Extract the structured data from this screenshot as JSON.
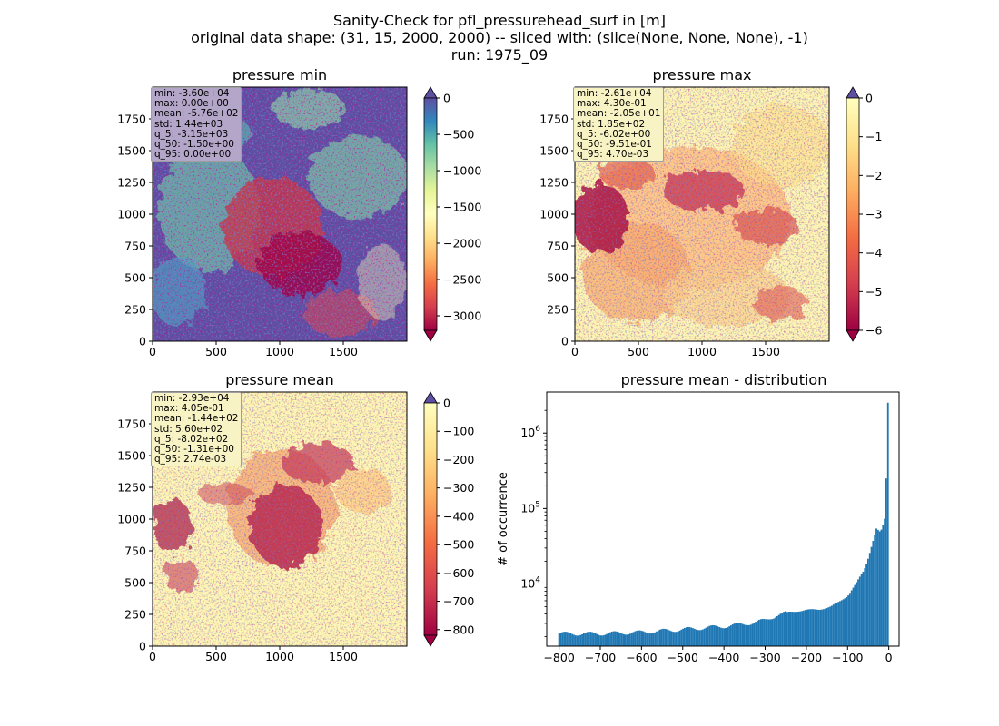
{
  "suptitle": {
    "line1": "Sanity-Check for pfl_pressurehead_surf in [m]",
    "line2": "original data shape: (31, 15, 2000, 2000) -- sliced with: (slice(None, None, None), -1)",
    "line3": "run: 1975_09"
  },
  "panels": [
    {
      "title": "pressure min",
      "colormap": "Spectral",
      "xticks": [
        0,
        500,
        1000,
        1500
      ],
      "yticks": [
        0,
        250,
        500,
        750,
        1000,
        1250,
        1500,
        1750
      ],
      "colorbar": {
        "vmin": -3200,
        "vmax": 0,
        "ticks": [
          0,
          -500,
          -1000,
          -1500,
          -2000,
          -2500,
          -3000
        ],
        "extend": "both"
      },
      "stats": [
        "min: -3.60e+04",
        "max: 0.00e+00",
        "mean: -5.76e+02",
        "std: 1.44e+03",
        "q_5: -3.15e+03",
        "q_50: -1.50e+00",
        "q_95: 0.00e+00"
      ],
      "stats_bg": "#b3a6c8"
    },
    {
      "title": "pressure max",
      "colormap": "Spectral",
      "xticks": [
        0,
        500,
        1000,
        1500
      ],
      "yticks": [
        0,
        250,
        500,
        750,
        1000,
        1250,
        1500,
        1750
      ],
      "colorbar": {
        "vmin": -6,
        "vmax": 0,
        "ticks": [
          0,
          -1,
          -2,
          -3,
          -4,
          -5,
          -6
        ],
        "extend": "both"
      },
      "stats": [
        "min: -2.61e+04",
        "max: 4.30e-01",
        "mean: -2.05e+01",
        "std: 1.85e+02",
        "q_5: -6.02e+00",
        "q_50: -9.51e-01",
        "q_95: 4.70e-03"
      ],
      "stats_bg": "#f8f3c4"
    },
    {
      "title": "pressure mean",
      "colormap": "Spectral",
      "xticks": [
        0,
        500,
        1000,
        1500
      ],
      "yticks": [
        0,
        250,
        500,
        750,
        1000,
        1250,
        1500,
        1750
      ],
      "colorbar": {
        "vmin": -820,
        "vmax": 0,
        "ticks": [
          0,
          -100,
          -200,
          -300,
          -400,
          -500,
          -600,
          -700,
          -800
        ],
        "extend": "both"
      },
      "stats": [
        "min: -2.93e+04",
        "max: 4.05e-01",
        "mean: -1.44e+02",
        "std: 5.60e+02",
        "q_5: -8.02e+02",
        "q_50: -1.31e+00",
        "q_95: 2.74e-03"
      ],
      "stats_bg": "#f8f3c4"
    }
  ],
  "histogram": {
    "title": "pressure mean - distribution",
    "ylabel": "# of occurrence",
    "color": "#1f77b4",
    "xlim": [
      -830,
      25
    ],
    "xticks": [
      -800,
      -700,
      -600,
      -500,
      -400,
      -300,
      -200,
      -100,
      0
    ],
    "yscale": "log",
    "ylim": [
      1500,
      3500000
    ],
    "ytick_labels": [
      {
        "value": 10000,
        "base": "10",
        "exp": "4"
      },
      {
        "value": 100000,
        "base": "10",
        "exp": "5"
      },
      {
        "value": 1000000,
        "base": "10",
        "exp": "6"
      }
    ]
  },
  "chart_data": [
    {
      "type": "heatmap",
      "title": "pressure min",
      "xlim": [
        0,
        2000
      ],
      "ylim": [
        0,
        2000
      ],
      "colorbar_range": [
        -3200,
        0
      ],
      "stats": {
        "min": -36000,
        "max": 0,
        "mean": -576,
        "std": 1440,
        "q_5": -3150,
        "q_50": -1.5,
        "q_95": 0
      }
    },
    {
      "type": "heatmap",
      "title": "pressure max",
      "xlim": [
        0,
        2000
      ],
      "ylim": [
        0,
        2000
      ],
      "colorbar_range": [
        -6,
        0
      ],
      "stats": {
        "min": -26100,
        "max": 0.43,
        "mean": -20.5,
        "std": 185,
        "q_5": -6.02,
        "q_50": -0.951,
        "q_95": 0.0047
      }
    },
    {
      "type": "heatmap",
      "title": "pressure mean",
      "xlim": [
        0,
        2000
      ],
      "ylim": [
        0,
        2000
      ],
      "colorbar_range": [
        -820,
        0
      ],
      "stats": {
        "min": -29300,
        "max": 0.405,
        "mean": -144,
        "std": 560,
        "q_5": -802,
        "q_50": -1.31,
        "q_95": 0.00274
      }
    },
    {
      "type": "bar",
      "title": "pressure mean - distribution",
      "ylabel": "# of occurrence",
      "yscale": "log",
      "bin_range": [
        -802,
        0
      ],
      "bins": 200,
      "control_points": [
        [
          -800,
          2200
        ],
        [
          -700,
          2200
        ],
        [
          -600,
          2300
        ],
        [
          -500,
          2500
        ],
        [
          -400,
          2750
        ],
        [
          -350,
          2950
        ],
        [
          -300,
          3300
        ],
        [
          -270,
          3900
        ],
        [
          -240,
          4250
        ],
        [
          -220,
          4400
        ],
        [
          -200,
          4500
        ],
        [
          -170,
          4600
        ],
        [
          -140,
          5000
        ],
        [
          -120,
          5800
        ],
        [
          -100,
          7000
        ],
        [
          -80,
          10000
        ],
        [
          -60,
          15000
        ],
        [
          -50,
          22000
        ],
        [
          -40,
          35000
        ],
        [
          -30,
          55000
        ],
        [
          -20,
          48000
        ],
        [
          -14,
          60000
        ],
        [
          -8,
          78000
        ],
        [
          -2,
          2500000
        ]
      ]
    }
  ]
}
